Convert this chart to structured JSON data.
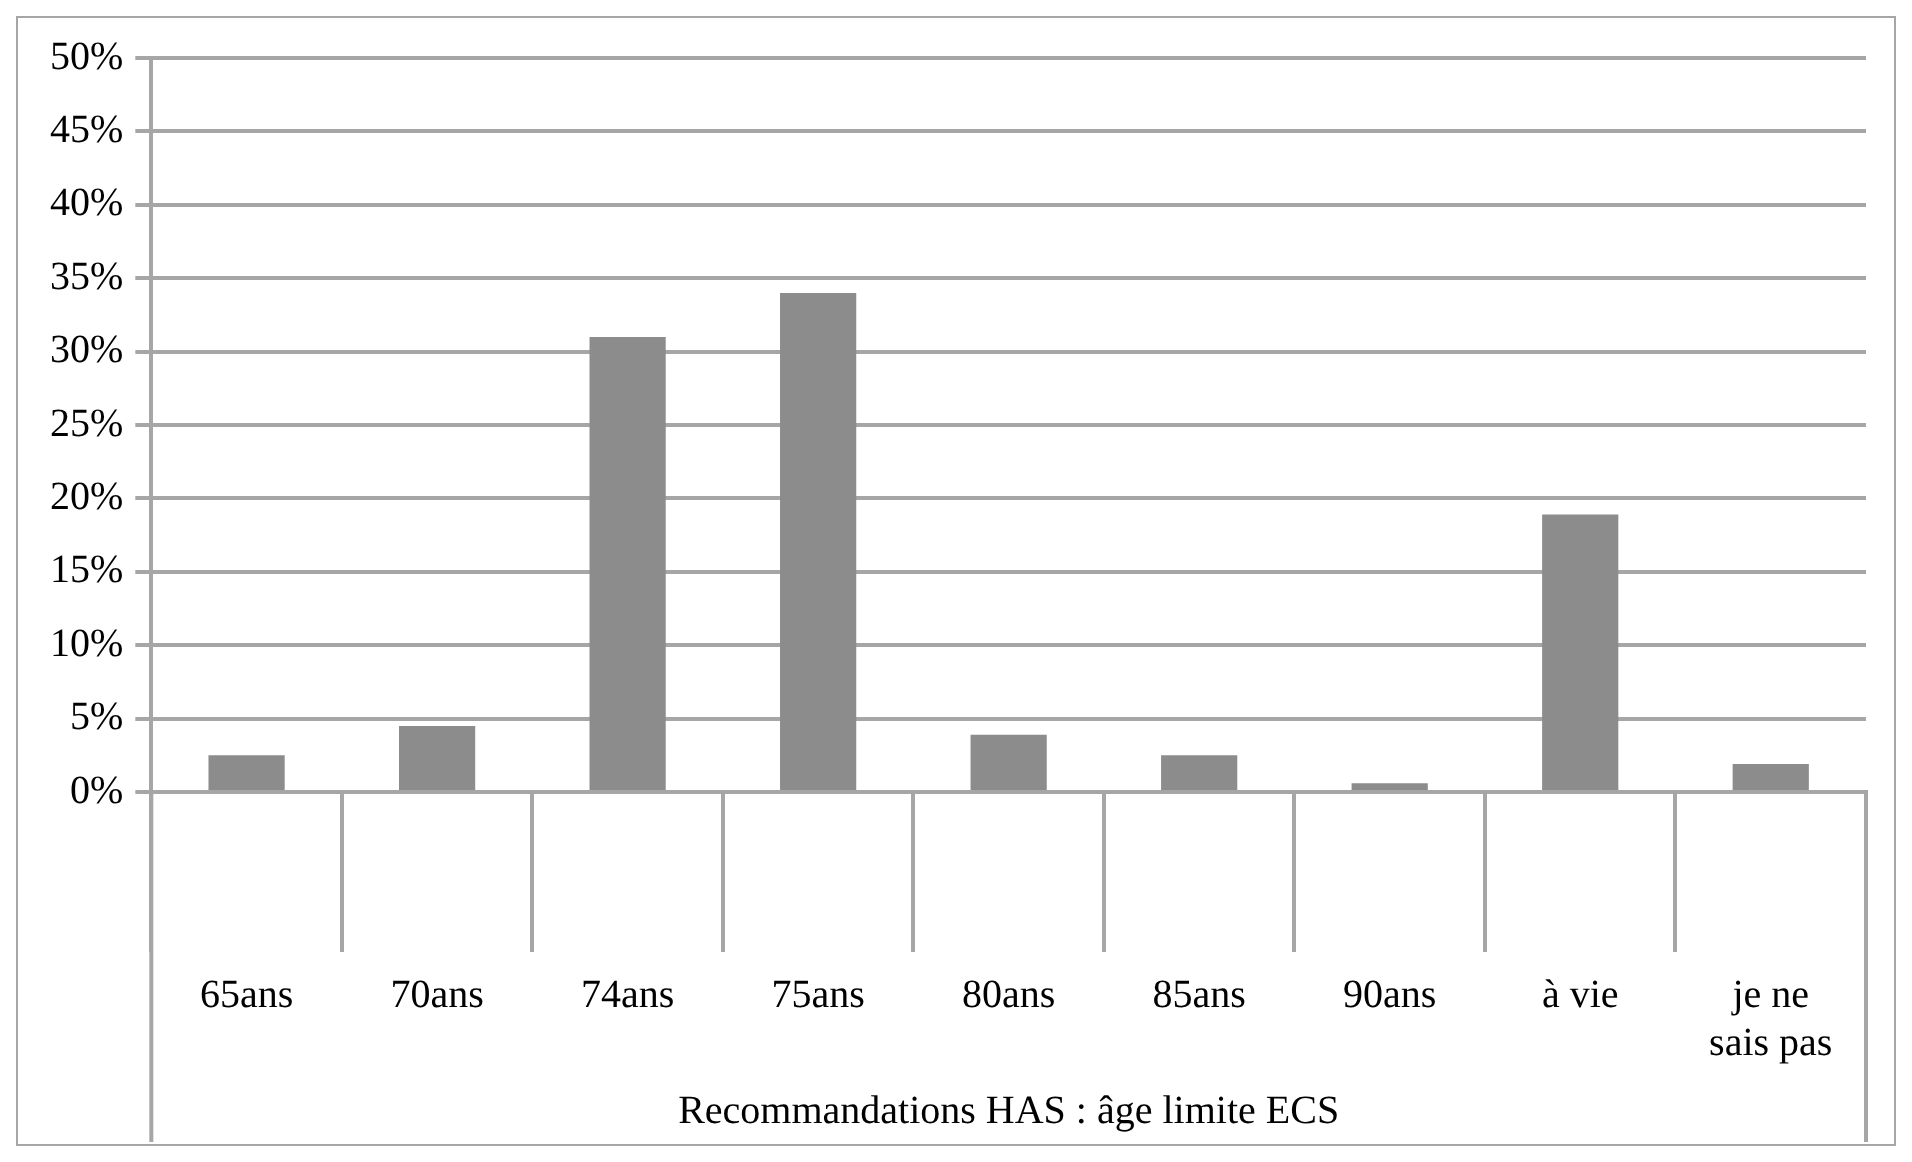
{
  "chart_data": {
    "type": "bar",
    "categories": [
      "65ans",
      "70ans",
      "74ans",
      "75ans",
      "80ans",
      "85ans",
      "90ans",
      "à vie",
      "je ne sais pas"
    ],
    "values": [
      2.5,
      4.5,
      31,
      34,
      3.9,
      2.5,
      0.6,
      18.9,
      1.9
    ],
    "color": "#8c8c8c",
    "xlabel": "Recommandations HAS : âge limite ECS",
    "ylim": [
      0,
      50
    ],
    "yticks": [
      {
        "value": 0,
        "label": "0%"
      },
      {
        "value": 5,
        "label": "5%"
      },
      {
        "value": 10,
        "label": "10%"
      },
      {
        "value": 15,
        "label": "15%"
      },
      {
        "value": 20,
        "label": "20%"
      },
      {
        "value": 25,
        "label": "25%"
      },
      {
        "value": 30,
        "label": "30%"
      },
      {
        "value": 35,
        "label": "35%"
      },
      {
        "value": 40,
        "label": "40%"
      },
      {
        "value": 45,
        "label": "45%"
      },
      {
        "value": 50,
        "label": "50%"
      }
    ],
    "grid": "y",
    "legend": false
  }
}
